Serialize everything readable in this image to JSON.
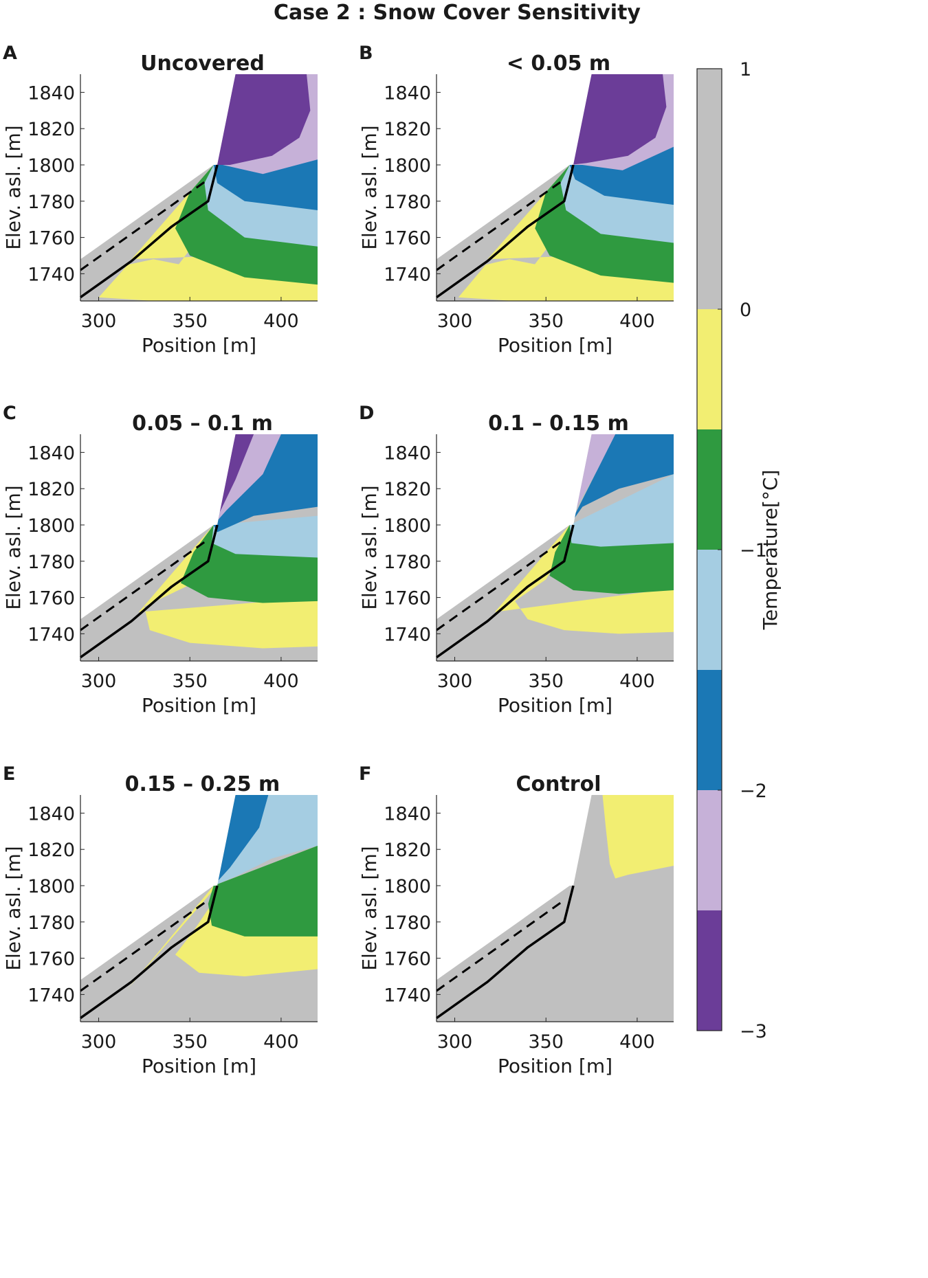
{
  "chart_data": {
    "type": "contour",
    "title": "Case 2 : Snow Cover Sensitivity",
    "xlabel": "Position [m]",
    "ylabel": "Elev. asl. [m]",
    "xlim": [
      290,
      420
    ],
    "ylim": [
      1725,
      1850
    ],
    "xticks": [
      "300",
      "350",
      "400"
    ],
    "yticks": [
      "1740",
      "1760",
      "1780",
      "1800",
      "1820",
      "1840"
    ],
    "colorbar": {
      "label": "Temperature[°C]",
      "ticks": [
        "1",
        "0",
        "−1",
        "−2",
        "−3"
      ],
      "range": [
        -3,
        1
      ],
      "levels": [
        {
          "range": [
            0,
            1
          ],
          "color": "#c0c0c0"
        },
        {
          "range": [
            -0.5,
            0
          ],
          "color": "#f2ee72"
        },
        {
          "range": [
            -1,
            -0.5
          ],
          "color": "#2f9a40"
        },
        {
          "range": [
            -1.5,
            -1
          ],
          "color": "#a5cde2"
        },
        {
          "range": [
            -2,
            -1.5
          ],
          "color": "#1b78b5"
        },
        {
          "range": [
            -2.5,
            -2
          ],
          "color": "#c6b1d8"
        },
        {
          "range": [
            -3,
            -2.5
          ],
          "color": "#6b3d98"
        }
      ]
    },
    "terrain_surface": [
      [
        290,
        1748
      ],
      [
        363,
        1800
      ],
      [
        365,
        1800
      ],
      [
        375,
        1850
      ]
    ],
    "solid_line": [
      [
        290,
        1727
      ],
      [
        318,
        1747
      ],
      [
        340,
        1766
      ],
      [
        360,
        1780
      ],
      [
        365,
        1800
      ]
    ],
    "dashed_line": [
      [
        290,
        1742
      ],
      [
        360,
        1792
      ]
    ],
    "panels": [
      {
        "label": "A",
        "title": "Uncovered"
      },
      {
        "label": "B",
        "title": "< 0.05 m"
      },
      {
        "label": "C",
        "title": "0.05 – 0.1 m"
      },
      {
        "label": "D",
        "title": "0.1 – 0.15 m"
      },
      {
        "label": "E",
        "title": "0.15 – 0.25 m"
      },
      {
        "label": "F",
        "title": "Control"
      }
    ]
  }
}
